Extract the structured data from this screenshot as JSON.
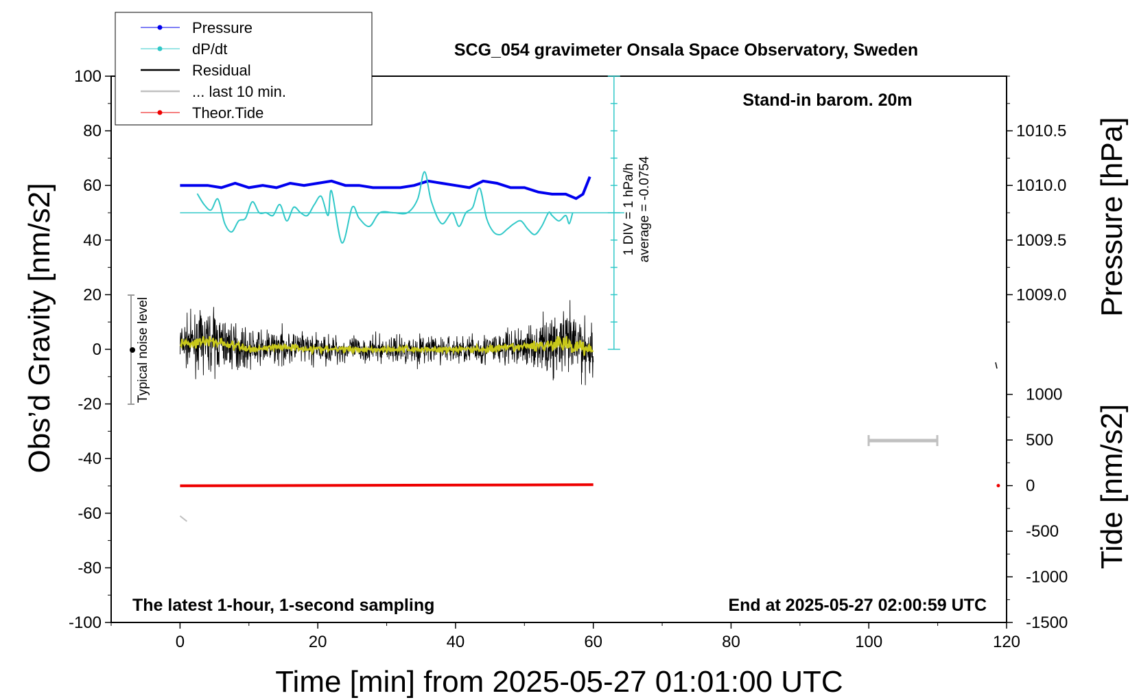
{
  "chart_data": {
    "type": "line",
    "title": "SCG_054 gravimeter Onsala Space Observatory, Sweden",
    "xlabel": "Time [min] from 2025-05-27 01:01:00 UTC",
    "ylabel": "Obs’d Gravity [nm/s2]",
    "y2label": "Pressure [hPa]",
    "y3label": "Tide [nm/s2]",
    "xlim": [
      -10,
      120
    ],
    "ylim": [
      -100,
      100
    ],
    "pressure_lim": [
      1009.0,
      1010.5
    ],
    "tide_lim": [
      -1500,
      1000
    ],
    "xticks": [
      "0",
      "20",
      "40",
      "60",
      "80",
      "100",
      "120"
    ],
    "yticks": [
      "100",
      "80",
      "60",
      "40",
      "20",
      "0",
      "-20",
      "-40",
      "-60",
      "-80",
      "-100"
    ],
    "pressure_ticks": [
      "1010.5",
      "1010.0",
      "1009.5",
      "1009.0"
    ],
    "tide_ticks": [
      "1000",
      "500",
      "0",
      "-500",
      "-1000",
      "-1500"
    ],
    "annotations": {
      "barometer": "Stand-in barom. 20m",
      "sampling": "The latest 1-hour, 1-second sampling",
      "end": "End at 2025-05-27 02:00:59 UTC",
      "noise": "Typical noise level",
      "div": "1 DIV = 1 hPa/h",
      "average": "average = -0.0754"
    },
    "legend": [
      {
        "name": "Pressure",
        "color": "#0000ee"
      },
      {
        "name": "dP/dt",
        "color": "#30c8c8"
      },
      {
        "name": "Residual",
        "color": "#000000"
      },
      {
        "name": "... last 10 min.",
        "color": "#c0c0c0"
      },
      {
        "name": "Theor.Tide",
        "color": "#ee0000"
      }
    ],
    "series": [
      {
        "name": "Pressure",
        "unit": "hPa",
        "x": [
          0,
          2,
          4,
          6,
          8,
          10,
          12,
          14,
          16,
          18,
          20,
          22,
          24,
          26,
          28,
          30,
          32,
          34,
          36,
          38,
          40,
          42,
          44,
          46,
          48,
          50,
          52,
          54,
          56,
          57.5,
          58.5,
          59.5
        ],
        "values": [
          1010.0,
          1010.0,
          1010.0,
          1009.98,
          1010.02,
          1009.98,
          1010.0,
          1009.98,
          1010.02,
          1010.0,
          1010.02,
          1010.04,
          1010.0,
          1010.0,
          1009.98,
          1009.98,
          1009.98,
          1010.0,
          1010.04,
          1010.02,
          1010.0,
          1009.98,
          1010.04,
          1010.02,
          1009.98,
          1009.98,
          1009.94,
          1009.92,
          1009.92,
          1009.88,
          1009.92,
          1010.08
        ]
      },
      {
        "name": "dP/dt",
        "unit": "hPa/h (1 DIV = 1 hPa/h, zero at 50)",
        "x": [
          2.5,
          3.5,
          4.5,
          5.5,
          6.5,
          7.5,
          8.5,
          9.5,
          10.5,
          11.5,
          12.5,
          13.5,
          14.5,
          15.5,
          16.5,
          17.5,
          18.5,
          19.5,
          20.5,
          21.5,
          22,
          23.5,
          25,
          26,
          27.5,
          29,
          31,
          33,
          34.5,
          35.5,
          36.5,
          38,
          39.5,
          40.5,
          41.5,
          42.5,
          43.5,
          44.5,
          45.5,
          46.5,
          47.5,
          48.5,
          49.5,
          50.5,
          51.5,
          52.5,
          53.5,
          54,
          55,
          56,
          56.5,
          57
        ],
        "values": [
          57,
          53,
          51,
          55,
          46,
          43,
          47,
          48,
          54,
          50,
          50,
          49,
          53,
          47,
          52,
          50,
          49,
          53,
          56,
          49,
          58,
          39,
          52,
          48,
          45,
          50,
          50,
          50,
          55,
          65,
          54,
          46,
          50,
          45,
          50,
          52,
          59,
          48,
          43,
          42,
          44,
          46,
          47,
          44,
          42,
          45,
          50,
          49,
          47,
          49,
          46,
          50
        ]
      },
      {
        "name": "Residual",
        "unit": "nm/s2",
        "x": [
          0,
          5,
          10,
          15,
          20,
          25,
          30,
          35,
          40,
          45,
          50,
          55,
          58,
          60
        ],
        "values": [
          2,
          3,
          0,
          1,
          0,
          0,
          0,
          0,
          0,
          0,
          1,
          2,
          1,
          0
        ],
        "envelope": [
          10,
          14,
          8,
          8,
          7,
          6,
          6,
          7,
          6,
          8,
          9,
          15,
          18,
          12
        ]
      },
      {
        "name": "... last 10 min.",
        "unit": "nm/s2",
        "x": [
          0,
          1
        ],
        "values": [
          -61,
          -63
        ]
      },
      {
        "name": "Theor.Tide",
        "unit": "nm/s2",
        "x": [
          0,
          60
        ],
        "values": [
          -2,
          10
        ]
      }
    ]
  }
}
